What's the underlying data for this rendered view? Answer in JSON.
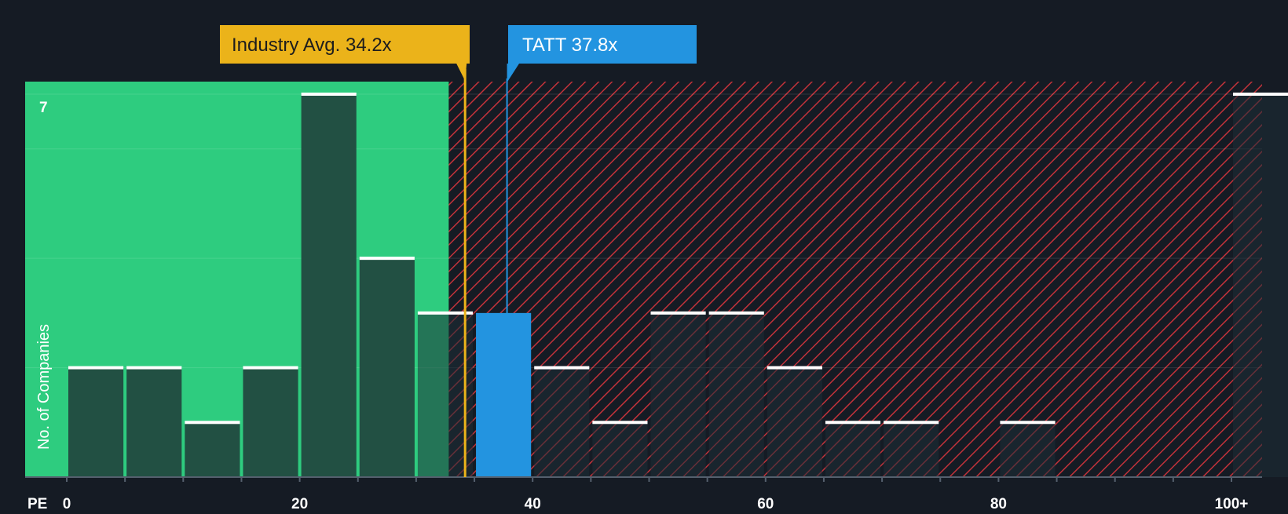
{
  "chart_data": {
    "type": "bar",
    "title": "",
    "xlabel": "PE",
    "ylabel": "No. of Companies",
    "xlim": [
      0,
      100
    ],
    "ylim": [
      0,
      7
    ],
    "y_max_tick_label": "7",
    "x_ticks": [
      {
        "value": 0,
        "label": "0"
      },
      {
        "value": 20,
        "label": "20"
      },
      {
        "value": 40,
        "label": "40"
      },
      {
        "value": 60,
        "label": "60"
      },
      {
        "value": 80,
        "label": "80"
      },
      {
        "value": 100,
        "label": "100+"
      }
    ],
    "bins": [
      {
        "start": 0,
        "end": 5,
        "count": 2
      },
      {
        "start": 5,
        "end": 10,
        "count": 2
      },
      {
        "start": 10,
        "end": 15,
        "count": 1
      },
      {
        "start": 15,
        "end": 20,
        "count": 2
      },
      {
        "start": 20,
        "end": 25,
        "count": 7
      },
      {
        "start": 25,
        "end": 30,
        "count": 4
      },
      {
        "start": 30,
        "end": 35,
        "count": 3
      },
      {
        "start": 35,
        "end": 40,
        "count": 3,
        "highlight": true
      },
      {
        "start": 40,
        "end": 45,
        "count": 2
      },
      {
        "start": 45,
        "end": 50,
        "count": 1
      },
      {
        "start": 50,
        "end": 55,
        "count": 3
      },
      {
        "start": 55,
        "end": 60,
        "count": 3
      },
      {
        "start": 60,
        "end": 65,
        "count": 2
      },
      {
        "start": 65,
        "end": 70,
        "count": 1
      },
      {
        "start": 70,
        "end": 75,
        "count": 1
      },
      {
        "start": 80,
        "end": 85,
        "count": 1
      },
      {
        "start": 100,
        "end": 105,
        "count": 7
      }
    ],
    "fair_zone_end": 32.8,
    "industry_avg": {
      "label": "Industry Avg. 34.2x",
      "value": 34.2
    },
    "company": {
      "label": "TATT 37.8x",
      "value": 37.8
    }
  },
  "colors": {
    "background": "#151b24",
    "green_zone": "#2ecc7f",
    "bar_fill": "#225043",
    "highlight_bar": "#2394e0",
    "hatch_red": "#c2323a",
    "industry_tag": "#ebb31a",
    "company_tag": "#2394e0",
    "bar_cap": "#ffffff",
    "axis_text": "#ffffff"
  }
}
